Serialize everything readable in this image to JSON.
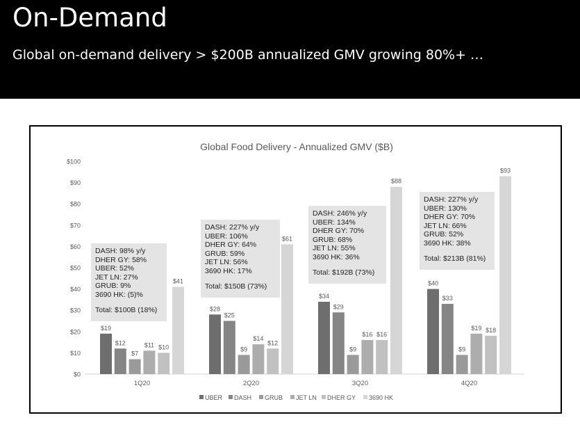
{
  "page": {
    "title": "On-Demand",
    "subtitle": "Global on-demand delivery > $200B annualized GMV growing 80%+ …"
  },
  "chart_data": {
    "type": "bar",
    "title": "Global Food Delivery - Annualized GMV ($B)",
    "xlabel": "",
    "ylabel": "",
    "ylim": [
      0,
      100
    ],
    "yticks": [
      "$0",
      "$10",
      "$20",
      "$30",
      "$40",
      "$50",
      "$60",
      "$70",
      "$80",
      "$90",
      "$100"
    ],
    "grid": false,
    "legend": "bottom",
    "categories": [
      "1Q20",
      "2Q20",
      "3Q20",
      "4Q20"
    ],
    "series": [
      {
        "name": "UBER",
        "color": "#6e6e6e",
        "values": [
          19,
          28,
          34,
          40
        ],
        "labels": [
          "$19",
          "$28",
          "$34",
          "$40"
        ]
      },
      {
        "name": "DASH",
        "color": "#858585",
        "values": [
          12,
          25,
          29,
          33
        ],
        "labels": [
          "$12",
          "$25",
          "$29",
          "$33"
        ]
      },
      {
        "name": "GRUB",
        "color": "#9a9a9a",
        "values": [
          7,
          9,
          9,
          9
        ],
        "labels": [
          "$7",
          "$9",
          "$9",
          "$9"
        ]
      },
      {
        "name": "JET LN",
        "color": "#adadad",
        "values": [
          11,
          14,
          16,
          19
        ],
        "labels": [
          "$11",
          "$14",
          "$16",
          "$19"
        ]
      },
      {
        "name": "DHER GY",
        "color": "#c1c1c1",
        "values": [
          10,
          12,
          16,
          18
        ],
        "labels": [
          "$10",
          "$12",
          "$16",
          "$18"
        ]
      },
      {
        "name": "3690 HK",
        "color": "#d6d6d6",
        "values": [
          41,
          61,
          88,
          93
        ],
        "labels": [
          "$41",
          "$61",
          "$88",
          "$93"
        ]
      }
    ],
    "annotations": [
      {
        "lines": [
          "DASH: 98% y/y",
          "DHER GY: 58%",
          "UBER: 52%",
          "JET LN: 27%",
          "GRUB: 9%",
          "3690 HK: (5)%"
        ],
        "total": "Total: $100B (18%)"
      },
      {
        "lines": [
          "DASH: 227% y/y",
          "UBER: 106%",
          "DHER GY: 64%",
          "GRUB: 59%",
          "JET LN: 56%",
          "3690 HK: 17%"
        ],
        "total": "Total: $150B (73%)"
      },
      {
        "lines": [
          "DASH: 246% y/y",
          "UBER: 134%",
          "DHER GY: 70%",
          "GRUB: 68%",
          "JET LN: 55%",
          "3690 HK: 36%"
        ],
        "total": "Total: $192B (73%)"
      },
      {
        "lines": [
          "DASH: 227% y/y",
          "UBER: 130%",
          "DHER GY: 70%",
          "JET LN: 66%",
          "GRUB: 52%",
          "3690 HK: 38%"
        ],
        "total": "Total: $213B (81%)"
      }
    ]
  }
}
